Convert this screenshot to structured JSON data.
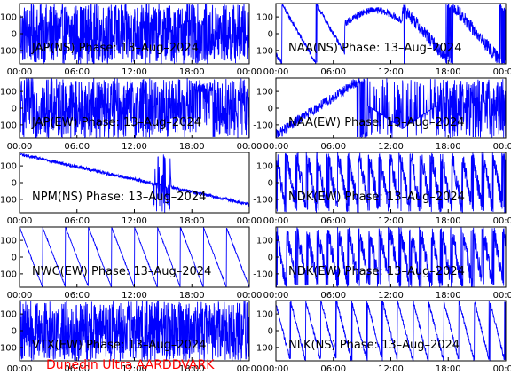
{
  "figure": {
    "footer": "Dunedin Ultra AARDDVARK",
    "colors": {
      "trace": "#0000ff",
      "axes": "#000000",
      "footer": "#ff0000"
    }
  },
  "chart_data": [
    {
      "type": "line",
      "id": "jap-ns",
      "title": "JAP(NS) Phase: 13–Aug–2024",
      "x": [
        "00:00",
        "06:00",
        "12:00",
        "18:00",
        "00:00"
      ],
      "y_ticks": [
        100,
        0,
        -100
      ],
      "ylim": [
        -180,
        180
      ],
      "pattern": "saturated"
    },
    {
      "type": "line",
      "id": "naa-ns",
      "title": "NAA(NS) Phase: 13–Aug–2024",
      "x": [
        "00:00",
        "06:00",
        "12:00",
        "18:00",
        "00:00"
      ],
      "y_ticks": [
        100,
        0,
        -100
      ],
      "ylim": [
        -180,
        180
      ],
      "pattern": "wraps-mixed"
    },
    {
      "type": "line",
      "id": "jap-ew",
      "title": "JAP(EW) Phase: 13–Aug–2024",
      "x": [
        "00:00",
        "06:00",
        "12:00",
        "18:00",
        "00:00"
      ],
      "y_ticks": [
        100,
        0,
        -100
      ],
      "ylim": [
        -180,
        180
      ],
      "pattern": "saturated-gaps"
    },
    {
      "type": "line",
      "id": "naa-ew",
      "title": "NAA(EW) Phase: 13–Aug–2024",
      "x": [
        "00:00",
        "06:00",
        "12:00",
        "18:00",
        "00:00"
      ],
      "y_ticks": [
        100,
        0,
        -100
      ],
      "ylim": [
        -180,
        180
      ],
      "pattern": "arch-noisy"
    },
    {
      "type": "line",
      "id": "npm-ns",
      "title": "NPM(NS) Phase: 13–Aug–2024",
      "x": [
        "00:00",
        "06:00",
        "12:00",
        "18:00",
        "00:00"
      ],
      "y_ticks": [
        100,
        0,
        -100
      ],
      "ylim": [
        -180,
        180
      ],
      "pattern": "slow-decline"
    },
    {
      "type": "line",
      "id": "ndk-ew-1",
      "title": "NDK(EW) Phase: 13–Aug–2024",
      "x": [
        "00:00",
        "06:00",
        "12:00",
        "18:00",
        "00:00"
      ],
      "y_ticks": [
        100,
        0,
        -100
      ],
      "ylim": [
        -180,
        180
      ],
      "pattern": "dense-sawtooth"
    },
    {
      "type": "line",
      "id": "nwc-ew",
      "title": "NWC(EW) Phase: 13–Aug–2024",
      "x": [
        "00:00",
        "06:00",
        "12:00",
        "18:00",
        "00:00"
      ],
      "y_ticks": [
        100,
        0,
        -100
      ],
      "ylim": [
        -180,
        180
      ],
      "pattern": "sawtooth"
    },
    {
      "type": "line",
      "id": "ndk-ew-2",
      "title": "NDK(EW) Phase: 13–Aug–2024",
      "x": [
        "00:00",
        "06:00",
        "12:00",
        "18:00",
        "00:00"
      ],
      "y_ticks": [
        100,
        0,
        -100
      ],
      "ylim": [
        -180,
        180
      ],
      "pattern": "dense-sawtooth"
    },
    {
      "type": "line",
      "id": "vtx-ew",
      "title": "VTX(EW) Phase: 13–Aug–2024",
      "x": [
        "00:00",
        "06:00",
        "12:00",
        "18:00",
        "00:00"
      ],
      "y_ticks": [
        100,
        0,
        -100
      ],
      "ylim": [
        -180,
        180
      ],
      "pattern": "noise"
    },
    {
      "type": "line",
      "id": "nlk-ns",
      "title": "NLK(NS) Phase: 13–Aug–2024",
      "x": [
        "00:00",
        "06:00",
        "12:00",
        "18:00",
        "00:00"
      ],
      "y_ticks": [
        100,
        0,
        -100
      ],
      "ylim": [
        -180,
        180
      ],
      "pattern": "sawtooth-sparse"
    }
  ]
}
